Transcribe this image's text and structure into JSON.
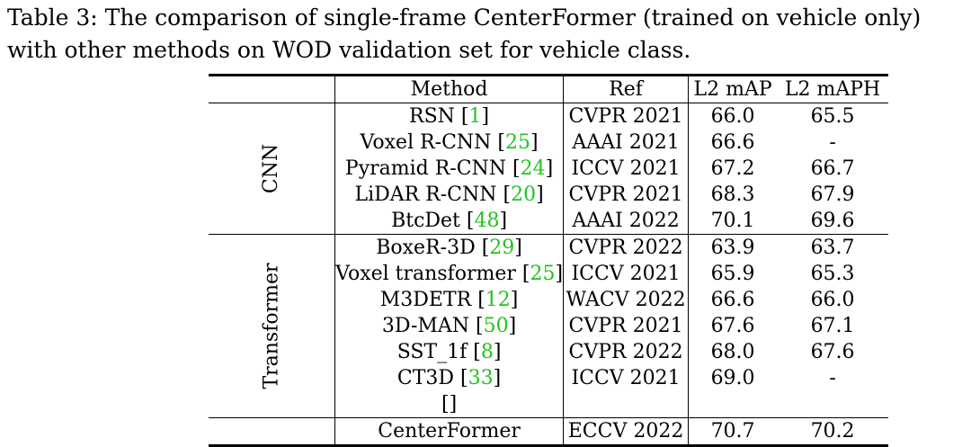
{
  "caption": {
    "text": "Table 3: The comparison of single-frame CenterFormer (trained on vehicle only) with other methods on WOD validation set for vehicle class."
  },
  "table": {
    "headers": {
      "method": "Method",
      "ref": "Ref",
      "map": "L2 mAP",
      "maph": "L2 mAPH"
    },
    "groups": [
      {
        "label": "CNN",
        "rows": [
          {
            "name": "RSN",
            "cite": "1",
            "ref": "CVPR 2021",
            "map": "66.0",
            "maph": "65.5"
          },
          {
            "name": "Voxel R-CNN",
            "cite": "25",
            "ref": "AAAI 2021",
            "map": "66.6",
            "maph": "-"
          },
          {
            "name": "Pyramid R-CNN",
            "cite": "24",
            "ref": "ICCV 2021",
            "map": "67.2",
            "maph": "66.7"
          },
          {
            "name": "LiDAR R-CNN",
            "cite": "20",
            "ref": "CVPR 2021",
            "map": "68.3",
            "maph": "67.9"
          },
          {
            "name": "BtcDet",
            "cite": "48",
            "ref": "AAAI 2022",
            "map": "70.1",
            "maph": "69.6"
          }
        ]
      },
      {
        "label": "Transformer",
        "rows": [
          {
            "name": "BoxeR-3D",
            "cite": "29",
            "ref": "CVPR 2022",
            "map": "63.9",
            "maph": "63.7"
          },
          {
            "name": "Voxel transformer",
            "cite": "25",
            "ref": "ICCV 2021",
            "map": "65.9",
            "maph": "65.3"
          },
          {
            "name": "M3DETR",
            "cite": "12",
            "ref": "WACV 2022",
            "map": "66.6",
            "maph": "66.0"
          },
          {
            "name": "3D-MAN",
            "cite": "50",
            "ref": "CVPR 2021",
            "map": "67.6",
            "maph": "67.1"
          },
          {
            "name": "SST_1f",
            "cite": "8",
            "ref": "CVPR 2022",
            "map": "68.0",
            "maph": "67.6"
          },
          {
            "name": "CT3D",
            "cite": "33",
            "ref": "ICCV 2021",
            "map": "69.0",
            "maph": "-"
          }
        ]
      }
    ],
    "final_row": {
      "name": "CenterFormer",
      "ref": "ECCV 2022",
      "map": "70.7",
      "maph": "70.2"
    }
  }
}
